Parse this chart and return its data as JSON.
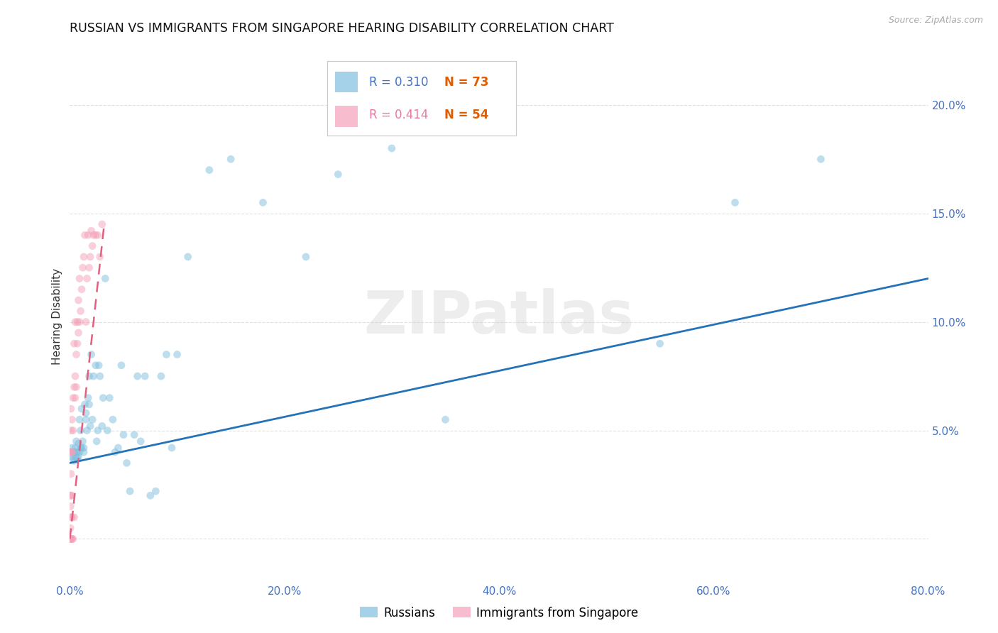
{
  "title": "RUSSIAN VS IMMIGRANTS FROM SINGAPORE HEARING DISABILITY CORRELATION CHART",
  "source": "Source: ZipAtlas.com",
  "ylabel": "Hearing Disability",
  "xlim": [
    0.0,
    0.8
  ],
  "ylim": [
    -0.02,
    0.225
  ],
  "yticks": [
    0.0,
    0.05,
    0.1,
    0.15,
    0.2
  ],
  "ytick_labels": [
    "",
    "5.0%",
    "10.0%",
    "15.0%",
    "20.0%"
  ],
  "xticks": [
    0.0,
    0.2,
    0.4,
    0.6,
    0.8
  ],
  "xtick_labels": [
    "0.0%",
    "20.0%",
    "40.0%",
    "60.0%",
    "80.0%"
  ],
  "watermark": "ZIPatlas",
  "legend_R1": "R = 0.310",
  "legend_N1": "N = 73",
  "legend_R2": "R = 0.414",
  "legend_N2": "N = 54",
  "legend_label1": "Russians",
  "legend_label2": "Immigrants from Singapore",
  "color_russian": "#7fbfdf",
  "color_singapore": "#f4a0b8",
  "color_trend_russian": "#2472b8",
  "color_trend_singapore": "#e06080",
  "color_R1": "#4472c4",
  "color_R2": "#e87aa0",
  "color_N": "#e05c00",
  "color_axis_x": "#4472c4",
  "color_axis_right": "#4472c4",
  "color_grid": "#e0e0e0",
  "bg_color": "#ffffff",
  "scatter_alpha": 0.5,
  "scatter_size": 60,
  "russian_x": [
    0.001,
    0.002,
    0.002,
    0.003,
    0.003,
    0.004,
    0.004,
    0.005,
    0.005,
    0.006,
    0.006,
    0.007,
    0.007,
    0.008,
    0.008,
    0.009,
    0.009,
    0.01,
    0.01,
    0.011,
    0.011,
    0.012,
    0.013,
    0.013,
    0.014,
    0.015,
    0.015,
    0.016,
    0.017,
    0.018,
    0.018,
    0.019,
    0.02,
    0.021,
    0.022,
    0.024,
    0.025,
    0.026,
    0.027,
    0.028,
    0.03,
    0.031,
    0.033,
    0.035,
    0.037,
    0.04,
    0.042,
    0.045,
    0.048,
    0.05,
    0.053,
    0.056,
    0.06,
    0.063,
    0.066,
    0.07,
    0.075,
    0.08,
    0.085,
    0.09,
    0.095,
    0.1,
    0.11,
    0.13,
    0.15,
    0.18,
    0.22,
    0.25,
    0.3,
    0.35,
    0.55,
    0.62,
    0.7
  ],
  "russian_y": [
    0.04,
    0.038,
    0.042,
    0.037,
    0.04,
    0.036,
    0.04,
    0.038,
    0.042,
    0.04,
    0.045,
    0.037,
    0.04,
    0.038,
    0.044,
    0.04,
    0.055,
    0.05,
    0.042,
    0.06,
    0.042,
    0.045,
    0.04,
    0.042,
    0.062,
    0.055,
    0.058,
    0.05,
    0.065,
    0.075,
    0.062,
    0.052,
    0.085,
    0.055,
    0.075,
    0.08,
    0.045,
    0.05,
    0.08,
    0.075,
    0.052,
    0.065,
    0.12,
    0.05,
    0.065,
    0.055,
    0.04,
    0.042,
    0.08,
    0.048,
    0.035,
    0.022,
    0.048,
    0.075,
    0.045,
    0.075,
    0.02,
    0.022,
    0.075,
    0.085,
    0.042,
    0.085,
    0.13,
    0.17,
    0.175,
    0.155,
    0.13,
    0.168,
    0.18,
    0.055,
    0.09,
    0.155,
    0.175
  ],
  "sg_x": [
    0.0005,
    0.0005,
    0.0005,
    0.0005,
    0.0005,
    0.0005,
    0.001,
    0.001,
    0.001,
    0.001,
    0.001,
    0.001,
    0.001,
    0.0015,
    0.0015,
    0.0015,
    0.002,
    0.002,
    0.002,
    0.002,
    0.003,
    0.003,
    0.003,
    0.004,
    0.004,
    0.004,
    0.005,
    0.005,
    0.005,
    0.006,
    0.006,
    0.007,
    0.007,
    0.008,
    0.008,
    0.009,
    0.009,
    0.01,
    0.011,
    0.012,
    0.013,
    0.014,
    0.015,
    0.016,
    0.017,
    0.018,
    0.019,
    0.02,
    0.021,
    0.022,
    0.024,
    0.026,
    0.028,
    0.03
  ],
  "sg_y": [
    0.0,
    0.0,
    0.005,
    0.01,
    0.015,
    0.02,
    0.0,
    0.01,
    0.02,
    0.03,
    0.04,
    0.05,
    0.06,
    0.0,
    0.02,
    0.04,
    0.0,
    0.01,
    0.04,
    0.055,
    0.0,
    0.05,
    0.065,
    0.01,
    0.07,
    0.09,
    0.065,
    0.075,
    0.1,
    0.07,
    0.085,
    0.09,
    0.1,
    0.095,
    0.11,
    0.1,
    0.12,
    0.105,
    0.115,
    0.125,
    0.13,
    0.14,
    0.1,
    0.12,
    0.14,
    0.125,
    0.13,
    0.142,
    0.135,
    0.14,
    0.14,
    0.14,
    0.13,
    0.145
  ],
  "russian_trend_x": [
    0.0,
    0.8
  ],
  "russian_trend_y": [
    0.035,
    0.12
  ],
  "sg_trend_x": [
    0.0,
    0.032
  ],
  "sg_trend_y": [
    0.0,
    0.145
  ]
}
